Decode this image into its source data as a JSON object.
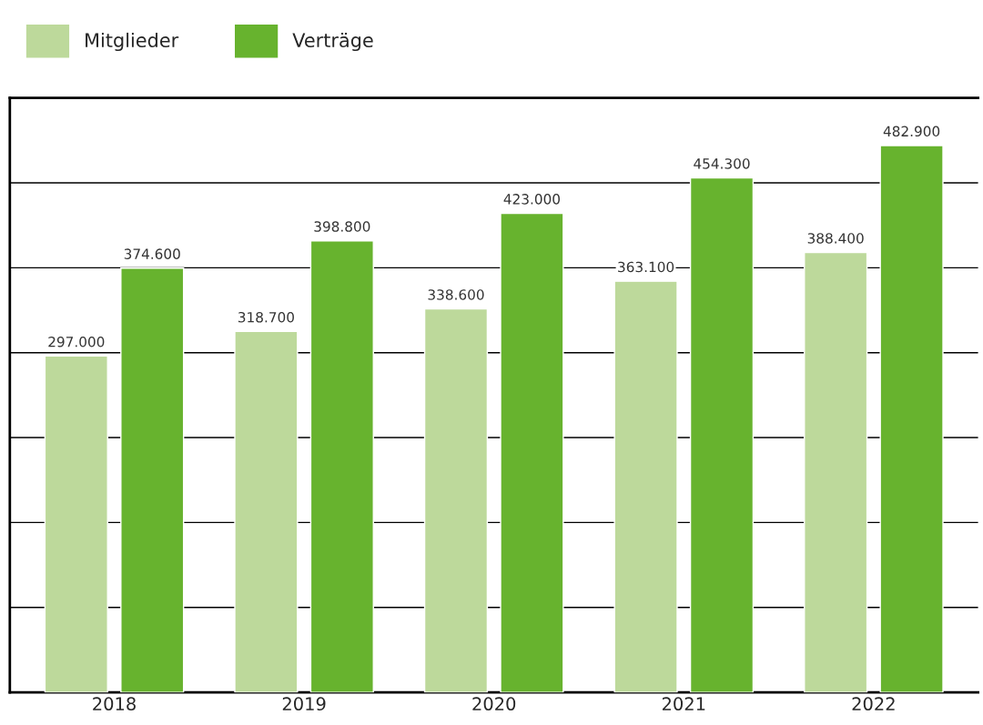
{
  "chart_data": {
    "type": "bar",
    "categories": [
      "2018",
      "2019",
      "2020",
      "2021",
      "2022"
    ],
    "series": [
      {
        "name": "Mitglieder",
        "color": "#bdd99b",
        "values": [
          297000,
          318700,
          338600,
          363100,
          388400
        ],
        "value_labels": [
          "297.000",
          "318.700",
          "338.600",
          "363.100",
          "388.400"
        ]
      },
      {
        "name": "Verträge",
        "color": "#67b32e",
        "values": [
          374600,
          398800,
          423000,
          454300,
          482900
        ],
        "value_labels": [
          "374.600",
          "398.800",
          "423.000",
          "454.300",
          "482.900"
        ]
      }
    ],
    "ylim": [
      0,
      525000
    ],
    "yticks": [
      {
        "value": 75000,
        "label": null
      },
      {
        "value": 150000,
        "label": null
      },
      {
        "value": 225000,
        "label": null
      },
      {
        "value": 300000,
        "label": null
      },
      {
        "value": 375000,
        "label": null
      },
      {
        "value": 450000,
        "label": null
      }
    ],
    "tick_labels": "x",
    "grid": "y",
    "legend": "top left"
  }
}
